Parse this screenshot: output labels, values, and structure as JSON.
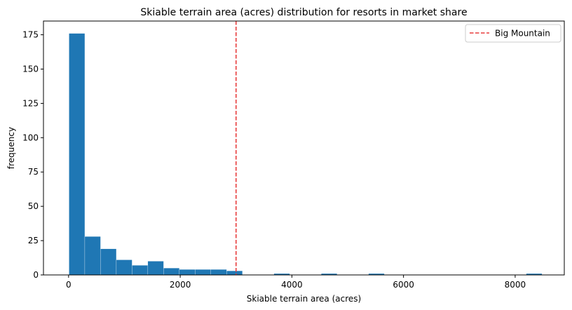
{
  "chart_data": {
    "type": "bar",
    "title": "Skiable terrain area (acres) distribution for resorts in market share",
    "xlabel": "Skiable terrain area (acres)",
    "ylabel": "frequency",
    "xlim": [
      -450,
      8880
    ],
    "ylim": [
      0,
      185
    ],
    "xticks": [
      0,
      2000,
      4000,
      6000,
      8000
    ],
    "yticks": [
      0,
      25,
      50,
      75,
      100,
      125,
      150,
      175
    ],
    "bin_start": 8,
    "bin_width": 282.4,
    "counts": [
      176,
      28,
      19,
      11,
      7,
      10,
      5,
      4,
      4,
      4,
      3,
      0,
      0,
      1,
      0,
      0,
      1,
      0,
      0,
      1,
      0,
      0,
      0,
      0,
      0,
      0,
      0,
      0,
      0,
      1
    ],
    "bar_color": "#1f77b4",
    "grid": false,
    "reference_line": {
      "label": "Big Mountain",
      "x": 3000,
      "color": "#e83d3d",
      "style": "dashed"
    },
    "legend": {
      "position": "top-right",
      "entries": [
        "Big Mountain"
      ]
    }
  }
}
